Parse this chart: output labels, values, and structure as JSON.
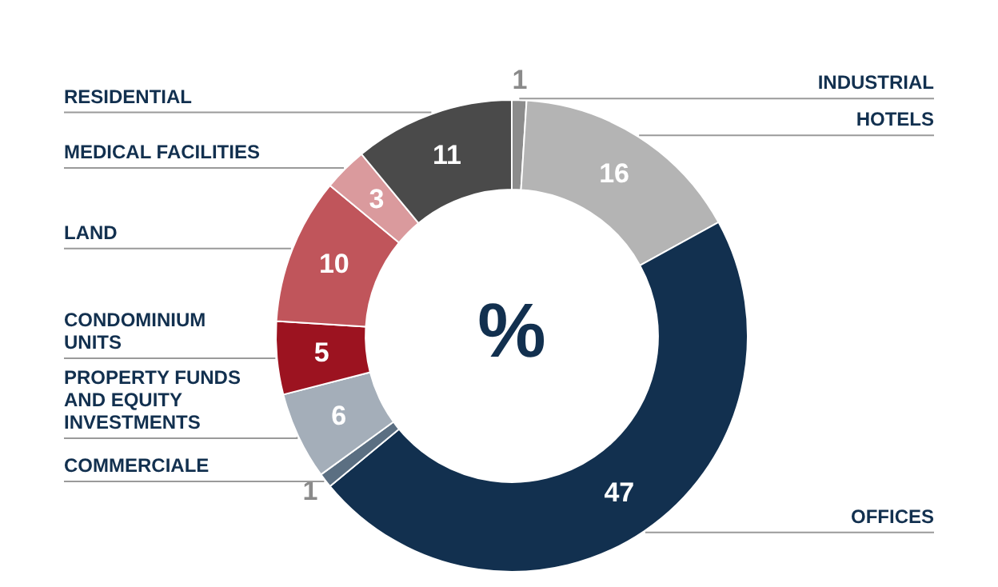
{
  "chart_data": {
    "type": "donut",
    "categories": [
      "INDUSTRIAL",
      "HOTELS",
      "OFFICES",
      "COMMERCIALE",
      "PROPERTY FUNDS AND EQUITY INVESTMENTS",
      "CONDOMINIUM UNITS",
      "LAND",
      "MEDICAL FACILITIES",
      "RESIDENTIAL"
    ],
    "values": [
      1,
      16,
      47,
      1,
      6,
      5,
      10,
      3,
      11
    ],
    "colors": [
      "#8c8c8c",
      "#b4b4b4",
      "#12304f",
      "#5b6f82",
      "#a4aeb9",
      "#9c1320",
      "#c0555b",
      "#da9a9d",
      "#4a4a4a"
    ],
    "data_labels": true,
    "legend": false,
    "annotations": [
      "%"
    ]
  }
}
